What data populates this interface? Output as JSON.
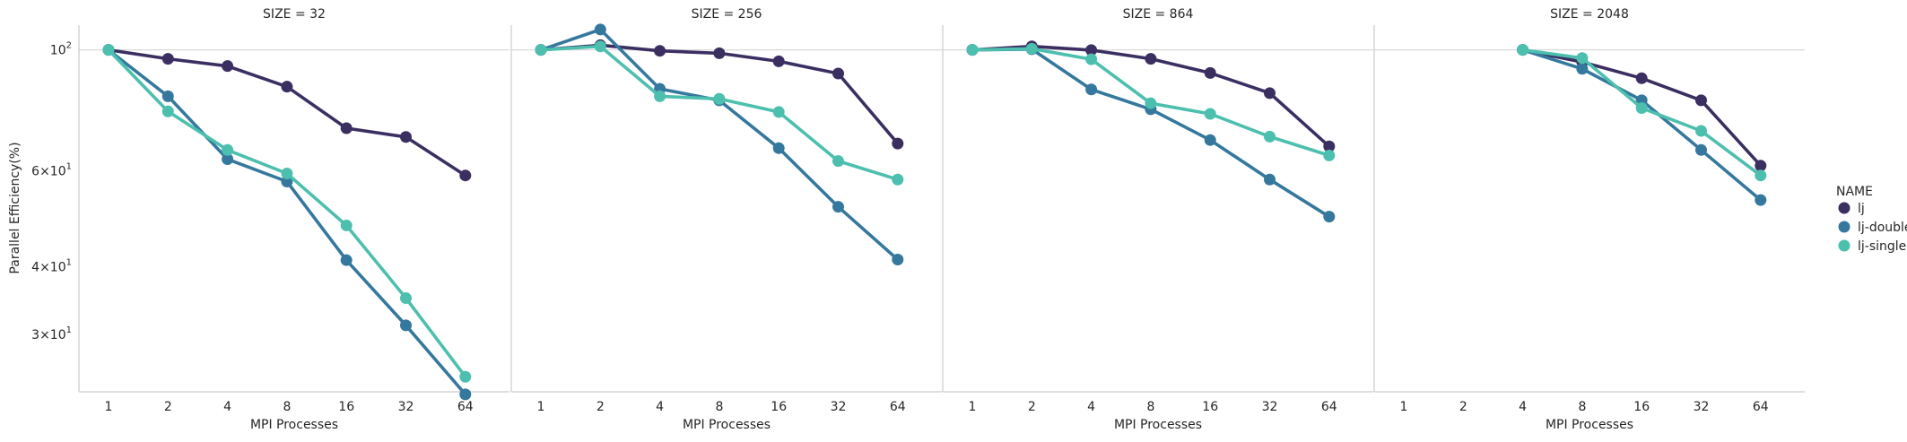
{
  "chart_data": {
    "type": "line",
    "facet_title_prefix": "SIZE = ",
    "ylabel": "Parallel Efficiency(%)",
    "xlabel": "MPI Processes",
    "y_scale": "log",
    "y_tick_labels": [
      {
        "value": 100,
        "base": "10",
        "exp": "2",
        "mant": ""
      },
      {
        "value": 60,
        "base": "10",
        "exp": "1",
        "mant": "6×"
      },
      {
        "value": 40,
        "base": "10",
        "exp": "1",
        "mant": "4×"
      },
      {
        "value": 30,
        "base": "10",
        "exp": "1",
        "mant": "3×"
      }
    ],
    "ylim": [
      22.0,
      118.0
    ],
    "categories": [
      "1",
      "2",
      "4",
      "8",
      "16",
      "32",
      "64"
    ],
    "grid": "horizontal at 10^2 only",
    "legend": {
      "title": "NAME",
      "placement": "right"
    },
    "colors": {
      "lj": "#3b2f62",
      "lj-double": "#35789e",
      "lj-single": "#4dbfae"
    },
    "panels": [
      {
        "size": "32",
        "series": [
          {
            "name": "lj",
            "values": [
              100,
              96.3,
              93.4,
              85.6,
              71.8,
              69.2,
              58.8
            ]
          },
          {
            "name": "lj-double",
            "values": [
              100,
              82.2,
              63.0,
              57.3,
              41.1,
              31.2,
              23.3
            ]
          },
          {
            "name": "lj-single",
            "values": [
              100,
              77.1,
              65.5,
              59.3,
              47.6,
              35.0,
              25.1
            ]
          }
        ]
      },
      {
        "size": "256",
        "series": [
          {
            "name": "lj",
            "values": [
              100,
              102.0,
              99.6,
              98.6,
              95.3,
              90.5,
              67.3
            ]
          },
          {
            "name": "lj-double",
            "values": [
              100,
              109.0,
              84.8,
              80.8,
              66.0,
              51.5,
              41.2
            ]
          },
          {
            "name": "lj-single",
            "values": [
              100,
              101.5,
              82.2,
              81.3,
              76.9,
              62.5,
              57.8
            ]
          }
        ]
      },
      {
        "size": "864",
        "series": [
          {
            "name": "lj",
            "values": [
              100,
              101.5,
              99.9,
              96.3,
              90.7,
              83.3,
              66.5
            ]
          },
          {
            "name": "lj-double",
            "values": [
              100,
              100.3,
              84.6,
              77.8,
              68.3,
              57.8,
              49.4
            ]
          },
          {
            "name": "lj-single",
            "values": [
              100,
              100.5,
              96.1,
              79.8,
              76.3,
              69.3,
              64.0
            ]
          }
        ]
      },
      {
        "size": "2048",
        "series": [
          {
            "name": "lj",
            "values": [
              null,
              null,
              100,
              95.0,
              88.7,
              80.8,
              61.3
            ]
          },
          {
            "name": "lj-double",
            "values": [
              null,
              null,
              100,
              92.3,
              80.8,
              65.5,
              53.0
            ]
          },
          {
            "name": "lj-single",
            "values": [
              null,
              null,
              100,
              96.6,
              78.2,
              71.0,
              58.8
            ]
          }
        ]
      }
    ]
  }
}
